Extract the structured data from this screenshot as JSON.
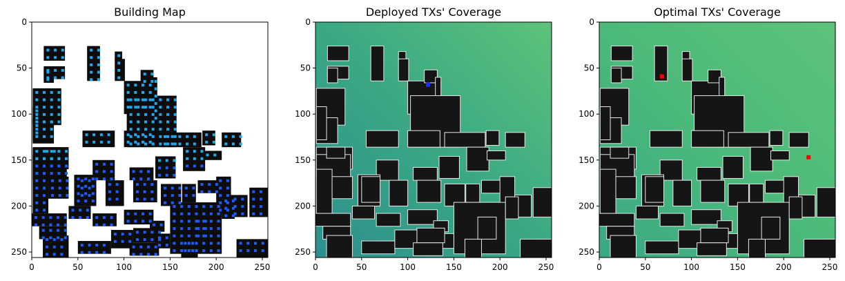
{
  "chart_data": [
    {
      "type": "heatmap",
      "title": "Building Map",
      "xticks": [
        0,
        50,
        100,
        150,
        200,
        250
      ],
      "yticks": [
        0,
        50,
        100,
        150,
        200,
        250
      ],
      "xlim": [
        0,
        256
      ],
      "ylim": [
        256,
        0
      ],
      "background_color": "#ffffff",
      "building_color": "#0c0c0c",
      "marker_colors": [
        "#1ea8f0",
        "#1a5cff"
      ]
    },
    {
      "type": "heatmap",
      "title": "Deployed TXs' Coverage",
      "xticks": [
        0,
        50,
        100,
        150,
        200,
        250
      ],
      "yticks": [
        0,
        50,
        100,
        150,
        200,
        250
      ],
      "xlim": [
        0,
        256
      ],
      "ylim": [
        256,
        0
      ],
      "colormap": [
        "#2e8f8c",
        "#3aa884",
        "#5ec27a"
      ],
      "transmitters": [
        {
          "x": 122,
          "y": 68,
          "color": "#1a2cff"
        }
      ]
    },
    {
      "type": "heatmap",
      "title": "Optimal TXs' Coverage",
      "xticks": [
        0,
        50,
        100,
        150,
        200,
        250
      ],
      "yticks": [
        0,
        50,
        100,
        150,
        200,
        250
      ],
      "xlim": [
        0,
        256
      ],
      "ylim": [
        256,
        0
      ],
      "colormap": [
        "#3aa884",
        "#4cba7a",
        "#5ec27a"
      ],
      "transmitters": [
        {
          "x": 68,
          "y": 59,
          "color": "#ff0000"
        },
        {
          "x": 227,
          "y": 147,
          "color": "#ff0000"
        }
      ]
    }
  ]
}
